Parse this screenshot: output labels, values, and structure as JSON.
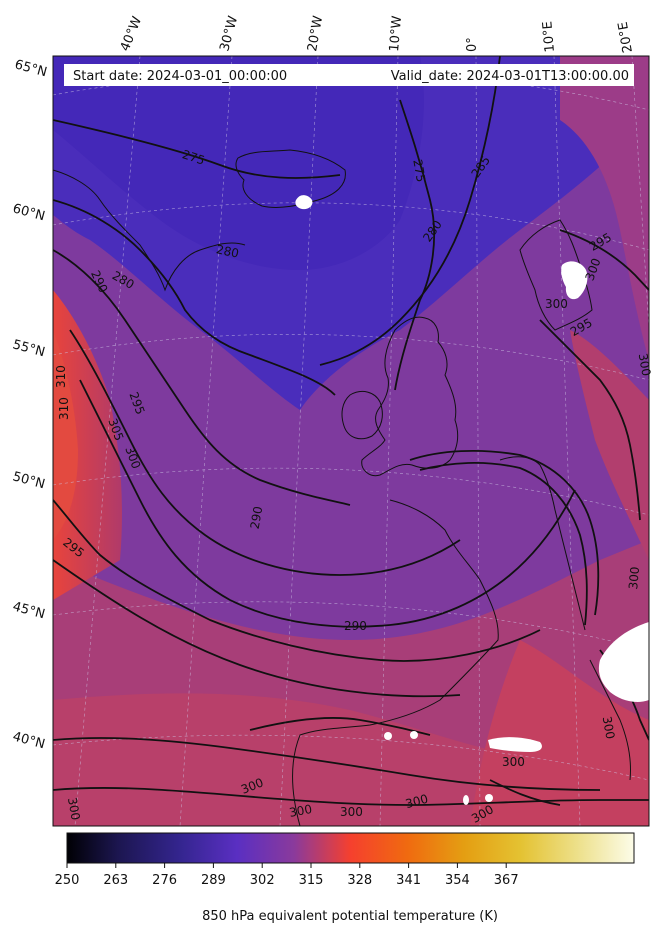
{
  "header": {
    "start_date": "Start date: 2024-03-01_00:00:00",
    "valid_date": "Valid_date: 2024-03-01T13:00:00.00"
  },
  "longitude_labels": [
    "40°W",
    "30°W",
    "20°W",
    "10°W",
    "0°",
    "10°E",
    "20°E"
  ],
  "latitude_labels": [
    "65°N",
    "60°N",
    "55°N",
    "50°N",
    "45°N",
    "40°N"
  ],
  "contour_labels": [
    "275",
    "275",
    "285",
    "280",
    "280",
    "280",
    "290",
    "295",
    "295",
    "300",
    "305",
    "310",
    "310",
    "295",
    "290",
    "290",
    "300",
    "300",
    "300",
    "300",
    "300",
    "300",
    "300",
    "300",
    "300",
    "300",
    "295",
    "300",
    "300"
  ],
  "colorbar": {
    "ticks": [
      "250",
      "263",
      "276",
      "289",
      "302",
      "315",
      "328",
      "341",
      "354",
      "367"
    ],
    "label": "850 hPa equivalent potential temperature (K)",
    "colors": [
      "#000004",
      "#1f1a5a",
      "#3c2a9e",
      "#5a33c0",
      "#7a3aa8",
      "#a53c80",
      "#d83f52",
      "#f5422a",
      "#f06a10",
      "#e89a10",
      "#e3c22a",
      "#ece07a",
      "#fbfbe9"
    ]
  }
}
